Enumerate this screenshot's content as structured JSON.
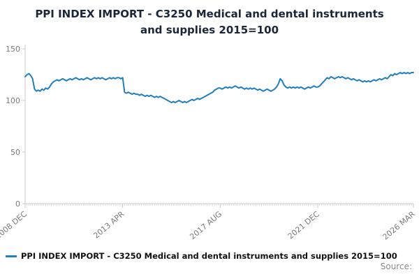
{
  "title": {
    "line1": "PPI INDEX IMPORT - C3250 Medical and dental instruments",
    "line2": "and supplies 2015=100"
  },
  "legend": {
    "label": "PPI INDEX IMPORT - C3250 Medical and dental instruments and supplies 2015=100"
  },
  "source": {
    "label": "Source:"
  },
  "colors": {
    "line": "#1f7fc0",
    "axis": "#c9c9c9",
    "tick_text": "#7a7a7a",
    "title_text": "#1b2639"
  },
  "chart_data": {
    "type": "line",
    "title": "PPI INDEX IMPORT - C3250 Medical and dental instruments and supplies 2015=100",
    "xlabel": "",
    "ylabel": "",
    "ylim": [
      0,
      150
    ],
    "y_ticks": [
      0,
      50,
      100,
      150
    ],
    "grid": false,
    "legend_position": "bottom-left",
    "x_tick_labels": [
      "2008 DEC",
      "2013 APR",
      "2017 AUG",
      "2021 DEC",
      "2026 MAR"
    ],
    "x_tick_indices": [
      0,
      52,
      104,
      156,
      207
    ],
    "x_frequency": "monthly",
    "x_range": [
      "2008 DEC",
      "2026 MAR"
    ],
    "series": [
      {
        "name": "PPI INDEX IMPORT - C3250 Medical and dental instruments and supplies 2015=100",
        "values": [
          123,
          125,
          126,
          124,
          121,
          111,
          109,
          110,
          109,
          111,
          110,
          112,
          111,
          113,
          116,
          118,
          119,
          120,
          119,
          120,
          121,
          120,
          119,
          120,
          121,
          120,
          121,
          122,
          121,
          120,
          121,
          120,
          121,
          122,
          121,
          120,
          121,
          122,
          121,
          122,
          121,
          122,
          121,
          120,
          121,
          122,
          121,
          122,
          121,
          122,
          122,
          121,
          122,
          108,
          107,
          108,
          107,
          106,
          107,
          106,
          106,
          105,
          106,
          105,
          104,
          105,
          104,
          105,
          104,
          103,
          104,
          103,
          104,
          103,
          102,
          101,
          100,
          99,
          98,
          99,
          98,
          99,
          100,
          99,
          98,
          99,
          98,
          99,
          100,
          101,
          100,
          101,
          102,
          101,
          102,
          103,
          104,
          105,
          106,
          107,
          108,
          110,
          111,
          112,
          112,
          111,
          112,
          113,
          112,
          113,
          112,
          113,
          114,
          113,
          112,
          113,
          112,
          111,
          112,
          111,
          112,
          111,
          112,
          111,
          110,
          111,
          110,
          109,
          110,
          111,
          110,
          109,
          110,
          111,
          113,
          116,
          121,
          119,
          115,
          113,
          112,
          113,
          112,
          113,
          112,
          113,
          112,
          113,
          112,
          111,
          112,
          113,
          112,
          113,
          114,
          113,
          113,
          114,
          116,
          118,
          120,
          122,
          121,
          123,
          122,
          121,
          122,
          123,
          122,
          123,
          122,
          121,
          122,
          121,
          120,
          121,
          120,
          119,
          120,
          119,
          118,
          119,
          118,
          119,
          118,
          119,
          120,
          119,
          120,
          121,
          120,
          121,
          122,
          121,
          123,
          125,
          124,
          126,
          125,
          126,
          127,
          126,
          127,
          126,
          127,
          126,
          127,
          127
        ]
      }
    ]
  }
}
